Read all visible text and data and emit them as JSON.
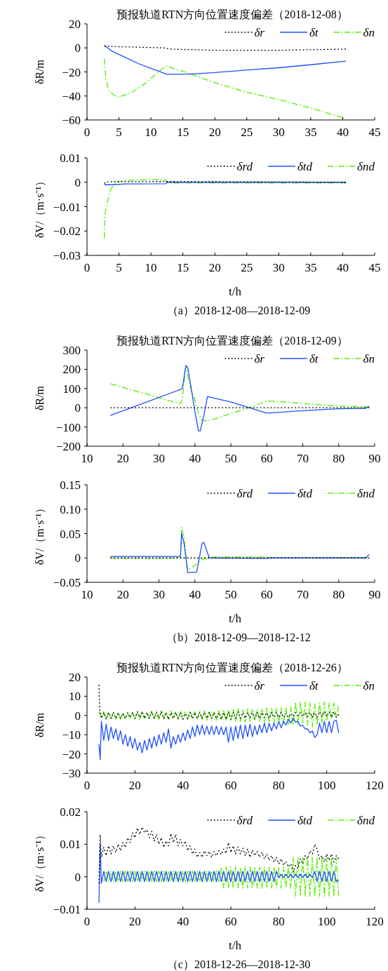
{
  "chart_data": [
    {
      "type": "line",
      "title": "预报轨道RTN方向位置速度偏差（2018-12-08）",
      "ylabel": "δR/m",
      "xlim": [
        0,
        45
      ],
      "xticks": [
        0,
        5,
        10,
        15,
        20,
        25,
        30,
        35,
        40,
        45
      ],
      "ylim": [
        -60,
        20
      ],
      "yticks": [
        {
          "value": -60,
          "label": "−60"
        },
        {
          "value": -40,
          "label": "−40"
        },
        {
          "value": -20,
          "label": "−20"
        },
        0,
        20
      ],
      "legend": "top right",
      "series": [
        {
          "name": "δr",
          "color": "#000000",
          "line_style": "dotted",
          "x": [
            2.7,
            5,
            12,
            13,
            20,
            30,
            40.5
          ],
          "values": [
            1.5,
            1,
            0,
            -1,
            -2,
            -2,
            -1
          ]
        },
        {
          "name": "δt",
          "color": "#1f4fff",
          "line_style": "solid",
          "x": [
            2.7,
            4,
            6,
            8,
            10,
            12,
            12.5,
            15,
            17,
            20,
            25,
            30,
            35,
            40.5
          ],
          "values": [
            2,
            -3,
            -8,
            -13,
            -17,
            -21,
            -22,
            -22,
            -21.5,
            -20.5,
            -18.5,
            -16.5,
            -14,
            -11
          ]
        },
        {
          "name": "δn",
          "color": "#55ee00",
          "line_style": "dashed",
          "x": [
            2.7,
            3,
            3.5,
            4.5,
            5,
            7,
            9,
            11,
            12.3,
            15,
            20,
            25,
            30,
            35,
            40
          ],
          "values": [
            -9,
            -28,
            -36,
            -40.5,
            -41,
            -37,
            -30,
            -21,
            -15,
            -19.5,
            -29,
            -37,
            -43,
            -50,
            -58
          ]
        }
      ]
    },
    {
      "type": "line",
      "xlabel": "t/h",
      "ylabel": "δV/（m·s⁻¹）",
      "annotations": [
        "（a）2018-12-08—2018-12-09"
      ],
      "xlim": [
        0,
        45
      ],
      "xticks": [
        0,
        5,
        10,
        15,
        20,
        25,
        30,
        35,
        40,
        45
      ],
      "ylim": [
        -0.03,
        0.01
      ],
      "yticks": [
        {
          "value": -0.03,
          "label": "−0.03"
        },
        {
          "value": -0.02,
          "label": "−0.02"
        },
        {
          "value": -0.01,
          "label": "−0.01"
        },
        0,
        0.01
      ],
      "legend": "top right",
      "series": [
        {
          "name": "δrd",
          "color": "#000000",
          "line_style": "dotted",
          "x": [
            2.7,
            3,
            12,
            40.5
          ],
          "values": [
            -0.0005,
            0.0002,
            0.0003,
            0
          ]
        },
        {
          "name": "δtd",
          "color": "#1f4fff",
          "line_style": "solid",
          "x": [
            2.7,
            4,
            6,
            12.3,
            12.5,
            40.5
          ],
          "values": [
            -0.001,
            -0.001,
            -0.0007,
            -0.0006,
            0,
            0
          ]
        },
        {
          "name": "δnd",
          "color": "#55ee00",
          "line_style": "dashed",
          "x": [
            2.7,
            2.8,
            3.2,
            3.7,
            4.5,
            6,
            10,
            12.3,
            12.5,
            40.5
          ],
          "values": [
            -0.023,
            -0.013,
            -0.008,
            -0.003,
            0,
            0.0007,
            0.0011,
            0.001,
            -0.0003,
            -0.0003
          ]
        }
      ]
    },
    {
      "type": "line",
      "title": "预报轨道RTN方向位置速度偏差（2018-12-09）",
      "ylabel": "δR/m",
      "xlim": [
        10,
        90
      ],
      "xticks": [
        10,
        20,
        30,
        40,
        50,
        60,
        70,
        80,
        90
      ],
      "ylim": [
        -200,
        300
      ],
      "yticks": [
        {
          "value": -200,
          "label": "−200"
        },
        {
          "value": -100,
          "label": "−100"
        },
        0,
        100,
        200,
        300
      ],
      "legend": "top right",
      "series": [
        {
          "name": "δr",
          "color": "#000000",
          "line_style": "dotted",
          "x": [
            16.5,
            88.5
          ],
          "values": [
            0,
            0
          ]
        },
        {
          "name": "δt",
          "color": "#1f4fff",
          "line_style": "solid",
          "x": [
            16.5,
            36,
            36.5,
            37.5,
            38,
            39,
            40,
            41,
            41.5,
            42.5,
            43.5,
            50,
            60,
            70,
            80,
            87.5,
            88.5
          ],
          "values": [
            -40,
            95,
            100,
            220,
            210,
            100,
            -20,
            -120,
            -120,
            -40,
            58,
            30,
            -28,
            -15,
            -5,
            -3,
            8
          ]
        },
        {
          "name": "δn",
          "color": "#55ee00",
          "line_style": "dashed",
          "x": [
            16.5,
            36,
            36.5,
            37.5,
            38.5,
            40,
            41,
            42,
            43.5,
            50,
            55,
            60,
            65,
            70,
            80,
            88.5
          ],
          "values": [
            125,
            20,
            50,
            215,
            120,
            40,
            -30,
            -65,
            -70,
            -30,
            0,
            35,
            30,
            22,
            8,
            5
          ]
        }
      ]
    },
    {
      "type": "line",
      "xlabel": "t/h",
      "ylabel": "δV/（m·s⁻¹）",
      "annotations": [
        "（b）2018-12-09—2018-12-12"
      ],
      "xlim": [
        10,
        90
      ],
      "xticks": [
        10,
        20,
        30,
        40,
        50,
        60,
        70,
        80,
        90
      ],
      "ylim": [
        -0.05,
        0.15
      ],
      "yticks": [
        {
          "value": -0.05,
          "label": "−0.05"
        },
        0,
        0.05,
        {
          "value": 0.1,
          "label": "0.10"
        },
        0.15
      ],
      "legend": "top right",
      "series": [
        {
          "name": "δrd",
          "color": "#000000",
          "line_style": "dotted",
          "x": [
            16.5,
            88.5
          ],
          "values": [
            0,
            0
          ]
        },
        {
          "name": "δtd",
          "color": "#1f4fff",
          "line_style": "solid",
          "x": [
            16.5,
            36,
            36.3,
            37,
            38,
            40.5,
            42,
            42.5,
            44,
            60,
            60.5,
            87.5,
            88.5
          ],
          "values": [
            0.003,
            0.003,
            0.05,
            0.03,
            -0.03,
            -0.029,
            0.03,
            0.032,
            0,
            -0.001,
            0,
            0,
            0.007
          ]
        },
        {
          "name": "δnd",
          "color": "#55ee00",
          "line_style": "dashed",
          "x": [
            16.5,
            36,
            36.3,
            37,
            38,
            40,
            42,
            43,
            44,
            60,
            60.5,
            88
          ],
          "values": [
            -0.001,
            -0.001,
            0.063,
            0.04,
            -0.025,
            -0.015,
            -0.003,
            -0.002,
            0.002,
            0.002,
            0,
            0.001
          ]
        }
      ]
    },
    {
      "type": "line",
      "title": "预报轨道RTN方向位置速度偏差（2018-12-26）",
      "ylabel": "δR/m",
      "xlim": [
        0,
        120
      ],
      "xticks": [
        0,
        20,
        40,
        60,
        80,
        100,
        120
      ],
      "ylim": [
        -30,
        20
      ],
      "yticks": [
        {
          "value": -30,
          "label": "−30"
        },
        {
          "value": -20,
          "label": "−20"
        },
        {
          "value": -10,
          "label": "−10"
        },
        0,
        10,
        20
      ],
      "legend": "top right",
      "series": [
        {
          "name": "δr",
          "color": "#000000",
          "line_style": "dotted",
          "x": [
            5,
            5.3,
            6,
            7,
            8,
            9,
            10,
            11,
            12,
            13,
            14,
            15,
            16,
            17,
            18,
            19,
            20,
            21,
            22,
            23,
            24,
            25,
            26,
            27,
            28,
            29,
            30,
            31,
            32,
            33,
            34,
            35,
            36,
            37,
            38,
            39,
            40,
            41,
            42,
            43,
            44,
            45,
            46,
            47,
            48,
            49,
            50,
            51,
            52,
            53,
            54,
            55,
            56,
            57,
            58,
            59,
            60,
            61,
            62,
            63,
            64,
            65,
            66,
            67,
            68,
            69,
            70,
            71,
            72,
            73,
            74,
            75,
            76,
            77,
            78,
            79,
            80,
            81,
            82,
            83,
            84,
            85,
            86,
            87,
            88,
            89,
            90,
            91,
            92,
            93,
            94,
            95,
            96,
            97,
            98,
            99,
            100,
            101,
            102,
            103,
            104,
            105
          ],
          "values": [
            16,
            3,
            -1.5,
            1.5,
            -2,
            1.5,
            -1.5,
            1.5,
            -1.5,
            1.5,
            -1.5,
            1,
            -1.5,
            1.5,
            -1,
            1.5,
            -1.5,
            2,
            -1,
            2,
            -1.5,
            1.5,
            -1.5,
            2,
            -1.5,
            1.5,
            -1.5,
            2,
            -1.5,
            1.5,
            -2,
            1.5,
            -1.5,
            1.5,
            -1.5,
            1.5,
            -2,
            1,
            -1.5,
            1.5,
            -1.5,
            1.5,
            -1.5,
            1.5,
            -1.5,
            1.5,
            -1.5,
            1.5,
            -1.5,
            1.5,
            -1.5,
            1.5,
            -2,
            1.5,
            -2,
            2,
            -2,
            1.5,
            -1.5,
            2,
            -1.5,
            1.5,
            -1.5,
            1.5,
            -1,
            1.5,
            -1.5,
            1.5,
            -1.5,
            1.5,
            -1,
            1.5,
            -1.5,
            1.5,
            -1,
            1.5,
            -1,
            1.5,
            -1,
            1,
            -1,
            1,
            -0.5,
            1.5,
            0,
            1.5,
            -0.5,
            1.5,
            -0.5,
            1.5,
            -1,
            1.5,
            -1,
            2,
            -0.5,
            2,
            -0.5,
            2,
            -1,
            2,
            -1,
            0.5
          ]
        },
        {
          "name": "δt",
          "color": "#1f4fff",
          "line_style": "solid",
          "x": [
            5,
            5.5,
            6,
            7,
            8,
            9,
            10,
            11,
            12,
            13,
            14,
            15,
            16,
            17,
            18,
            19,
            20,
            21,
            22,
            23,
            24,
            25,
            26,
            27,
            28,
            29,
            30,
            31,
            32,
            33,
            34,
            35,
            36,
            37,
            38,
            39,
            40,
            41,
            42,
            43,
            44,
            45,
            46,
            47,
            48,
            49,
            50,
            51,
            52,
            53,
            54,
            55,
            56,
            57,
            58,
            59,
            60,
            61,
            62,
            63,
            64,
            65,
            66,
            67,
            68,
            69,
            70,
            71,
            72,
            73,
            74,
            75,
            76,
            77,
            78,
            79,
            80,
            81,
            82,
            83,
            84,
            85,
            86,
            87,
            88,
            89,
            90,
            91,
            92,
            93,
            94,
            95,
            96,
            97,
            98,
            99,
            100,
            101,
            102,
            103,
            104,
            105
          ],
          "values": [
            -15,
            -23,
            -3,
            -13,
            -4.5,
            -13,
            -6,
            -12,
            -7,
            -13,
            -8,
            -15,
            -10,
            -16,
            -11,
            -17,
            -12,
            -18,
            -14,
            -19.5,
            -13,
            -18,
            -12,
            -17,
            -11,
            -16,
            -10,
            -15,
            -9,
            -14,
            -7,
            -17,
            -11,
            -15,
            -10,
            -14,
            -9,
            -13,
            -7.5,
            -12,
            -6,
            -11,
            -5,
            -10,
            -5,
            -10,
            -5.5,
            -10,
            -5.5,
            -10,
            -5.5,
            -10,
            -6,
            -10,
            -6,
            -14,
            -6,
            -13,
            -5.5,
            -12,
            -5,
            -12,
            -5,
            -11,
            -4.5,
            -11,
            -5.5,
            -10,
            -5,
            -9,
            -4,
            -9,
            -4,
            -8,
            -4,
            -7,
            -3,
            -6.5,
            -3,
            -5,
            -2,
            -4,
            -1.5,
            -3.5,
            -3,
            -5.5,
            -5,
            -7,
            -7,
            -9,
            -8,
            -11.5,
            -10,
            -4,
            -9,
            -3,
            -9,
            -3,
            -9,
            -3,
            -2.5,
            -9
          ]
        },
        {
          "name": "δn",
          "color": "#55ee00",
          "line_style": "dashed",
          "x": [
            5,
            6,
            7,
            8,
            9,
            10,
            11,
            12,
            13,
            14,
            15,
            16,
            17,
            18,
            19,
            20,
            21,
            22,
            23,
            24,
            25,
            26,
            27,
            28,
            29,
            30,
            31,
            32,
            33,
            34,
            35,
            36,
            37,
            38,
            39,
            40,
            41,
            42,
            43,
            44,
            45,
            46,
            47,
            48,
            49,
            50,
            51,
            52,
            53,
            54,
            55,
            56,
            57,
            58,
            59,
            60,
            61,
            62,
            63,
            64,
            65,
            66,
            67,
            68,
            69,
            70,
            71,
            72,
            73,
            74,
            75,
            76,
            77,
            78,
            79,
            80,
            81,
            82,
            83,
            84,
            85,
            86,
            87,
            88,
            89,
            90,
            91,
            92,
            93,
            94,
            95,
            96,
            97,
            98,
            99,
            100,
            101,
            102,
            103,
            104,
            105
          ],
          "values": [
            2,
            -1,
            2,
            -2,
            1.5,
            -2,
            1.5,
            -2,
            1.5,
            -2,
            1.5,
            -2,
            1,
            -2,
            1.5,
            -2,
            1.5,
            -2,
            2,
            -1.5,
            2,
            -2,
            2,
            -2,
            2.5,
            -2,
            2.5,
            -2,
            2,
            -2,
            2.5,
            -2,
            2,
            -2,
            2.5,
            -2,
            2,
            -2,
            2.5,
            -2,
            2,
            -2,
            2.5,
            -2,
            2.5,
            -2.5,
            2.5,
            -2.5,
            2,
            -2.5,
            2.5,
            -2.5,
            3,
            -3,
            3,
            -3,
            3.5,
            -3,
            3.5,
            -3,
            3,
            -3.5,
            3.5,
            -3,
            3.5,
            -3,
            3.5,
            -3.5,
            3.5,
            -3.5,
            4,
            -3.5,
            4,
            -4,
            4,
            -4,
            4,
            -5,
            4,
            -5,
            4.5,
            -5,
            7,
            -5,
            7,
            -4,
            7,
            -5,
            7,
            -6,
            6,
            -5,
            6.5,
            -4,
            7,
            -3,
            6.5,
            -2,
            6.5,
            -1,
            5
          ]
        }
      ]
    },
    {
      "type": "line",
      "xlabel": "t/h",
      "ylabel": "δV/（m·s⁻¹）",
      "annotations": [
        "（c）2018-12-26—2018-12-30"
      ],
      "xlim": [
        0,
        120
      ],
      "xticks": [
        0,
        20,
        40,
        60,
        80,
        100,
        120
      ],
      "ylim": [
        -0.01,
        0.02
      ],
      "yticks": [
        {
          "value": -0.01,
          "label": "−0.01"
        },
        0,
        0.01,
        0.02
      ],
      "legend": "top right",
      "series": [
        {
          "name": "δrd",
          "color": "#000000",
          "line_style": "dotted",
          "x": [
            5,
            5.5,
            6,
            7,
            8,
            9,
            10,
            11,
            12,
            13,
            14,
            15,
            16,
            17,
            18,
            19,
            20,
            21,
            22,
            23,
            24,
            25,
            26,
            27,
            28,
            29,
            30,
            31,
            32,
            33,
            34,
            35,
            36,
            37,
            38,
            39,
            40,
            41,
            42,
            43,
            44,
            45,
            46,
            47,
            48,
            49,
            50,
            51,
            52,
            53,
            54,
            55,
            56,
            57,
            58,
            59,
            60,
            61,
            62,
            63,
            64,
            65,
            66,
            67,
            68,
            69,
            70,
            71,
            72,
            73,
            74,
            75,
            76,
            77,
            78,
            79,
            80,
            81,
            82,
            83,
            84,
            85,
            86,
            87,
            88,
            89,
            90,
            91,
            92,
            93,
            94,
            95,
            96,
            97,
            98,
            99,
            100,
            101,
            102,
            103,
            104,
            105
          ],
          "values": [
            -0.002,
            0.013,
            0.006,
            0.009,
            0.0065,
            0.0095,
            0.007,
            0.0095,
            0.0075,
            0.01,
            0.008,
            0.0105,
            0.009,
            0.012,
            0.0105,
            0.0135,
            0.012,
            0.015,
            0.013,
            0.0153,
            0.0135,
            0.0145,
            0.012,
            0.014,
            0.011,
            0.013,
            0.01,
            0.012,
            0.009,
            0.011,
            0.0095,
            0.0133,
            0.0105,
            0.013,
            0.0095,
            0.0115,
            0.0095,
            0.011,
            0.008,
            0.0095,
            0.007,
            0.0085,
            0.006,
            0.0075,
            0.006,
            0.008,
            0.0065,
            0.0078,
            0.006,
            0.0078,
            0.0065,
            0.008,
            0.0068,
            0.0085,
            0.0072,
            0.0105,
            0.0075,
            0.0095,
            0.007,
            0.0092,
            0.007,
            0.0088,
            0.0065,
            0.0085,
            0.006,
            0.0082,
            0.0065,
            0.0078,
            0.006,
            0.0075,
            0.0055,
            0.007,
            0.005,
            0.0065,
            0.0045,
            0.006,
            0.004,
            0.0055,
            0.0035,
            0.0048,
            0.003,
            0.004,
            0.0015,
            0.0035,
            0.0025,
            0.0055,
            0.004,
            0.0065,
            0.0055,
            0.008,
            0.007,
            0.01,
            0.0085,
            0.0055,
            0.0065,
            0.0045,
            0.007,
            0.005,
            0.007,
            0.0045,
            0.0065,
            0.0055
          ]
        },
        {
          "name": "δtd",
          "color": "#1f4fff",
          "line_style": "solid",
          "x": [
            5,
            5.5,
            6,
            7,
            8,
            9,
            10,
            11,
            12,
            13,
            14,
            15,
            16,
            17,
            18,
            19,
            20,
            21,
            22,
            23,
            24,
            25,
            26,
            27,
            28,
            29,
            30,
            31,
            32,
            33,
            34,
            35,
            36,
            37,
            38,
            39,
            40,
            41,
            42,
            43,
            44,
            45,
            46,
            47,
            48,
            49,
            50,
            51,
            52,
            53,
            54,
            55,
            56,
            57,
            58,
            59,
            60,
            61,
            62,
            63,
            64,
            65,
            66,
            67,
            68,
            69,
            70,
            71,
            72,
            73,
            74,
            75,
            76,
            77,
            78,
            79,
            80,
            81,
            82,
            83,
            84,
            85,
            86,
            87,
            88,
            89,
            90,
            91,
            92,
            93,
            94,
            95,
            96,
            97,
            98,
            99,
            100,
            101,
            102,
            103,
            104,
            105
          ],
          "values": [
            -0.008,
            0.01,
            -0.002,
            0.0017,
            -0.0015,
            0.0017,
            -0.0015,
            0.0017,
            -0.0015,
            0.0017,
            -0.0015,
            0.0017,
            -0.0015,
            0.0017,
            -0.0015,
            0.0017,
            -0.0015,
            0.0017,
            -0.0015,
            0.0017,
            -0.0015,
            0.0017,
            -0.0015,
            0.0017,
            -0.0015,
            0.0017,
            -0.0015,
            0.0017,
            -0.0015,
            0.0017,
            -0.0015,
            0.0017,
            -0.0015,
            0.0017,
            -0.0015,
            0.0017,
            -0.0015,
            0.0017,
            -0.0015,
            0.0017,
            -0.0015,
            0.0017,
            -0.0015,
            0.0017,
            -0.0015,
            0.0017,
            -0.0015,
            0.0017,
            -0.0015,
            0.0017,
            -0.0015,
            0.0017,
            -0.0015,
            0.0017,
            -0.0015,
            0.0017,
            -0.0015,
            0.0017,
            -0.0015,
            0.0017,
            -0.0015,
            0.0017,
            -0.0015,
            0.0017,
            -0.0015,
            0.0017,
            -0.0015,
            0.0017,
            -0.0015,
            0.0017,
            -0.0015,
            0.0017,
            -0.0015,
            0.0017,
            -0.0015,
            0.0017,
            -0.0003,
            0.0008,
            -0.0003,
            0.0008,
            -0.0003,
            0.0008,
            -0.0003,
            0.0008,
            -0.0003,
            0.0008,
            -0.0003,
            0.0008,
            -0.0003,
            0.0008,
            -0.0003,
            0.0017,
            -0.0015,
            0.0017,
            -0.0015,
            0.0017,
            -0.0015,
            0.0017,
            -0.0015,
            0.0017,
            -0.0015,
            -0.001
          ]
        },
        {
          "name": "δnd",
          "color": "#55ee00",
          "line_style": "dashed",
          "x": [
            7,
            8,
            9,
            10,
            11,
            12,
            13,
            14,
            15,
            16,
            17,
            18,
            19,
            20,
            21,
            22,
            23,
            24,
            25,
            26,
            27,
            28,
            29,
            30,
            31,
            32,
            33,
            34,
            35,
            36,
            37,
            38,
            39,
            40,
            41,
            42,
            43,
            44,
            45,
            46,
            47,
            48,
            49,
            50,
            51,
            52,
            53,
            54,
            55,
            56,
            57,
            58,
            59,
            60,
            61,
            62,
            63,
            64,
            65,
            66,
            67,
            68,
            69,
            70,
            71,
            72,
            73,
            74,
            75,
            76,
            77,
            78,
            79,
            80,
            81,
            82,
            83,
            84,
            85,
            86,
            87,
            88,
            89,
            90,
            91,
            92,
            93,
            94,
            95,
            96,
            97,
            98,
            99,
            100,
            101,
            102,
            103,
            104,
            105
          ],
          "values": [
            -0.0015,
            0.0018,
            -0.0015,
            0.0018,
            -0.0015,
            0.0018,
            -0.0015,
            0.0018,
            -0.0015,
            0.0018,
            -0.0015,
            0.0018,
            -0.0015,
            0.0018,
            -0.0015,
            0.0018,
            -0.0015,
            0.0018,
            -0.0015,
            0.0018,
            -0.0015,
            0.0018,
            -0.0015,
            0.0018,
            -0.0015,
            0.0018,
            -0.0015,
            0.0018,
            -0.0015,
            0.0018,
            -0.0015,
            0.0018,
            -0.0015,
            0.0018,
            -0.0015,
            0.0018,
            -0.0015,
            0.0018,
            -0.0015,
            0.0018,
            -0.0015,
            0.0018,
            -0.0015,
            0.0018,
            -0.0015,
            0.0018,
            -0.0015,
            0.0018,
            -0.0015,
            0.003,
            -0.0035,
            0.003,
            -0.0035,
            0.003,
            -0.0035,
            0.003,
            -0.0035,
            0.003,
            -0.0035,
            0.003,
            -0.0035,
            0.003,
            -0.0035,
            0.003,
            -0.0035,
            0.003,
            -0.0035,
            0.003,
            -0.0035,
            0.003,
            -0.0035,
            0.003,
            -0.0035,
            0.003,
            -0.0035,
            0.003,
            -0.0035,
            0.003,
            -0.0035,
            0.006,
            -0.006,
            0.006,
            -0.006,
            0.006,
            -0.006,
            0.006,
            -0.006,
            0.006,
            -0.006,
            0.006,
            -0.006,
            0.006,
            -0.006,
            0.006,
            -0.006,
            0.006,
            -0.006,
            0.006,
            -0.006
          ]
        }
      ]
    }
  ]
}
